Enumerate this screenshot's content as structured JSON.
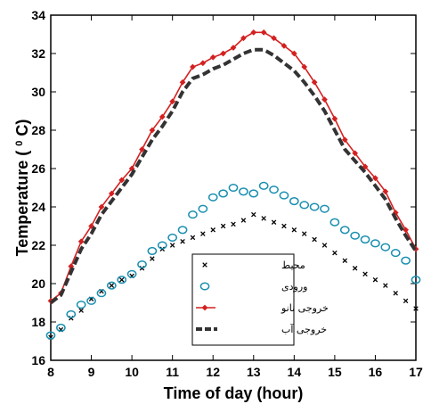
{
  "chart_data": {
    "type": "line",
    "xlabel": "Time of day (hour)",
    "ylabel": "Temperature ( ",
    "ylabel_sup": "0",
    "ylabel_end": " C)",
    "xlim": [
      8,
      17
    ],
    "ylim": [
      16,
      34
    ],
    "x_ticks": [
      8,
      9,
      10,
      11,
      12,
      13,
      14,
      15,
      16,
      17
    ],
    "y_ticks": [
      16,
      18,
      20,
      22,
      24,
      26,
      28,
      30,
      32,
      34
    ],
    "grid": false,
    "legend_position": "bottom-center",
    "series": [
      {
        "name": "محیط",
        "style": "x-markers",
        "color": "#000000",
        "x": [
          8,
          8.25,
          8.5,
          8.75,
          9,
          9.25,
          9.5,
          9.75,
          10,
          10.25,
          10.5,
          10.75,
          11,
          11.25,
          11.5,
          11.75,
          12,
          12.25,
          12.5,
          12.75,
          13,
          13.25,
          13.5,
          13.75,
          14,
          14.25,
          14.5,
          14.75,
          15,
          15.25,
          15.5,
          15.75,
          16,
          16.25,
          16.5,
          16.75,
          17
        ],
        "y": [
          17.2,
          17.6,
          18.2,
          18.6,
          19.2,
          19.6,
          19.9,
          20.2,
          20.4,
          20.8,
          21.3,
          21.8,
          22.0,
          22.2,
          22.4,
          22.6,
          22.8,
          23.0,
          23.1,
          23.3,
          23.6,
          23.4,
          23.2,
          23.0,
          22.8,
          22.6,
          22.3,
          22.0,
          21.6,
          21.2,
          20.8,
          20.5,
          20.2,
          19.9,
          19.5,
          19.1,
          18.7
        ]
      },
      {
        "name": "ورودی",
        "style": "circle-markers",
        "color": "#1a8fb0",
        "x": [
          8,
          8.25,
          8.5,
          8.75,
          9,
          9.25,
          9.5,
          9.75,
          10,
          10.25,
          10.5,
          10.75,
          11,
          11.25,
          11.5,
          11.75,
          12,
          12.25,
          12.5,
          12.75,
          13,
          13.25,
          13.5,
          13.75,
          14,
          14.25,
          14.5,
          14.75,
          15,
          15.25,
          15.5,
          15.75,
          16,
          16.25,
          16.5,
          16.75,
          17
        ],
        "y": [
          17.3,
          17.7,
          18.4,
          18.9,
          19.1,
          19.5,
          19.9,
          20.2,
          20.5,
          21.0,
          21.7,
          22.0,
          22.4,
          22.8,
          23.6,
          23.9,
          24.5,
          24.7,
          25.0,
          24.8,
          24.7,
          25.1,
          24.9,
          24.6,
          24.3,
          24.1,
          24.0,
          23.9,
          23.2,
          22.8,
          22.5,
          22.3,
          22.1,
          21.9,
          21.6,
          21.2,
          20.2
        ]
      },
      {
        "name": "خروجی نانو",
        "style": "line-diamond",
        "color": "#d42020",
        "x": [
          8,
          8.25,
          8.5,
          8.75,
          9,
          9.25,
          9.5,
          9.75,
          10,
          10.25,
          10.5,
          10.75,
          11,
          11.25,
          11.5,
          11.75,
          12,
          12.25,
          12.5,
          12.75,
          13,
          13.25,
          13.5,
          13.75,
          14,
          14.25,
          14.5,
          14.75,
          15,
          15.25,
          15.5,
          15.75,
          16,
          16.25,
          16.5,
          16.75,
          17
        ],
        "y": [
          19.1,
          19.5,
          20.9,
          22.2,
          23.0,
          24.0,
          24.7,
          25.4,
          26.0,
          27.0,
          28.0,
          28.7,
          29.5,
          30.5,
          31.3,
          31.5,
          31.8,
          32.0,
          32.3,
          32.8,
          33.1,
          33.1,
          32.8,
          32.4,
          32.0,
          31.3,
          30.5,
          29.6,
          28.6,
          27.5,
          26.8,
          26.1,
          25.5,
          24.8,
          23.7,
          22.8,
          21.8
        ]
      },
      {
        "name": "خروجی آب",
        "style": "dashed-line",
        "color": "#333333",
        "x": [
          8,
          8.25,
          8.5,
          8.75,
          9,
          9.25,
          9.5,
          9.75,
          10,
          10.25,
          10.5,
          10.75,
          11,
          11.25,
          11.5,
          11.75,
          12,
          12.25,
          12.5,
          12.75,
          13,
          13.25,
          13.5,
          13.75,
          14,
          14.25,
          14.5,
          14.75,
          15,
          15.25,
          15.5,
          15.75,
          16,
          16.25,
          16.5,
          16.75,
          17
        ],
        "y": [
          19.0,
          19.4,
          20.6,
          21.8,
          22.6,
          23.6,
          24.3,
          25.0,
          25.7,
          26.6,
          27.5,
          28.2,
          29.0,
          30.0,
          30.7,
          30.9,
          31.2,
          31.4,
          31.7,
          32.0,
          32.2,
          32.2,
          31.9,
          31.5,
          31.1,
          30.5,
          29.8,
          29.0,
          28.0,
          27.0,
          26.4,
          25.8,
          25.1,
          24.4,
          23.4,
          22.5,
          21.7
        ]
      }
    ]
  }
}
